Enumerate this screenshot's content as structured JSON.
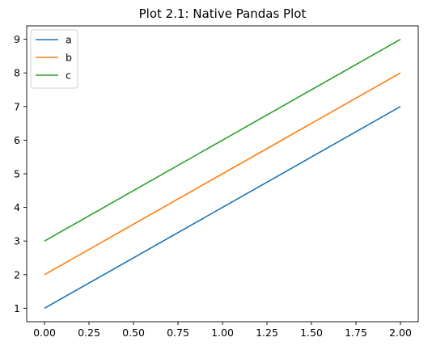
{
  "chart_data": {
    "type": "line",
    "title": "Plot 2.1: Native Pandas Plot",
    "xlabel": "",
    "ylabel": "",
    "x": [
      0,
      1,
      2
    ],
    "xlim": [
      -0.1,
      2.1
    ],
    "ylim": [
      0.6,
      9.4
    ],
    "xticks": [
      0.0,
      0.25,
      0.5,
      0.75,
      1.0,
      1.25,
      1.5,
      1.75,
      2.0
    ],
    "xtick_labels": [
      "0.00",
      "0.25",
      "0.50",
      "0.75",
      "1.00",
      "1.25",
      "1.50",
      "1.75",
      "2.00"
    ],
    "yticks": [
      1,
      2,
      3,
      4,
      5,
      6,
      7,
      8,
      9
    ],
    "ytick_labels": [
      "1",
      "2",
      "3",
      "4",
      "5",
      "6",
      "7",
      "8",
      "9"
    ],
    "grid": false,
    "legend_position": "top-left",
    "series": [
      {
        "name": "a",
        "values": [
          1,
          4,
          7
        ],
        "color": "#1f77b4"
      },
      {
        "name": "b",
        "values": [
          2,
          5,
          8
        ],
        "color": "#ff7f0e"
      },
      {
        "name": "c",
        "values": [
          3,
          6,
          9
        ],
        "color": "#2ca02c"
      }
    ]
  }
}
